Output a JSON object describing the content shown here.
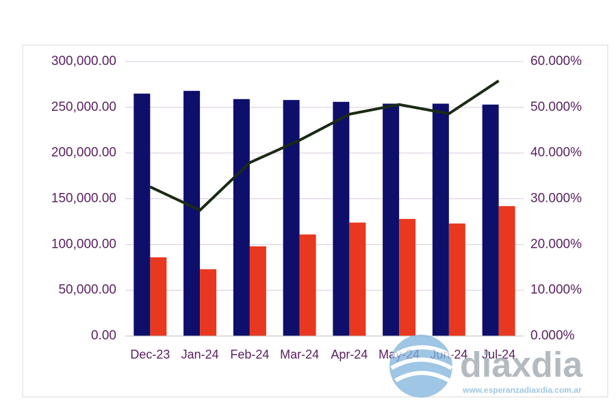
{
  "chart_data": {
    "type": "bar-line",
    "categories": [
      "Dec-23",
      "Jan-24",
      "Feb-24",
      "Mar-24",
      "Apr-24",
      "May-24",
      "Jun-24",
      "Jul-24"
    ],
    "series": [
      {
        "type": "bar",
        "color": "#0d0f6b",
        "values": [
          265000,
          268000,
          259000,
          258000,
          256000,
          254000,
          254000,
          253000
        ]
      },
      {
        "type": "bar",
        "color": "#e8381f",
        "values": [
          86000,
          73000,
          98000,
          111000,
          124000,
          128000,
          123000,
          142000
        ]
      },
      {
        "type": "line",
        "axis": "y2",
        "color": "#1a2a14",
        "values": [
          32.6,
          27.5,
          37.9,
          42.8,
          48.5,
          50.6,
          48.6,
          55.8
        ]
      }
    ],
    "ylim": [
      0,
      300000
    ],
    "yticks": [
      {
        "value": 0,
        "label": "0.00"
      },
      {
        "value": 50000,
        "label": "50,000.00"
      },
      {
        "value": 100000,
        "label": "100,000.00"
      },
      {
        "value": 150000,
        "label": "150,000.00"
      },
      {
        "value": 200000,
        "label": "200,000.00"
      },
      {
        "value": 250000,
        "label": "250,000.00"
      },
      {
        "value": 300000,
        "label": "300,000.00"
      }
    ],
    "y2lim": [
      0,
      60
    ],
    "y2ticks": [
      {
        "value": 0,
        "label": "0.000%"
      },
      {
        "value": 10,
        "label": "10.000%"
      },
      {
        "value": 20,
        "label": "20.000%"
      },
      {
        "value": 30,
        "label": "30.000%"
      },
      {
        "value": 40,
        "label": "40.000%"
      },
      {
        "value": 50,
        "label": "50.000%"
      },
      {
        "value": 60,
        "label": "60.000%"
      }
    ],
    "grid": true
  },
  "watermark": {
    "logo": "diaxdia",
    "url": "www.esperanzadiaxdia.com.ar"
  }
}
